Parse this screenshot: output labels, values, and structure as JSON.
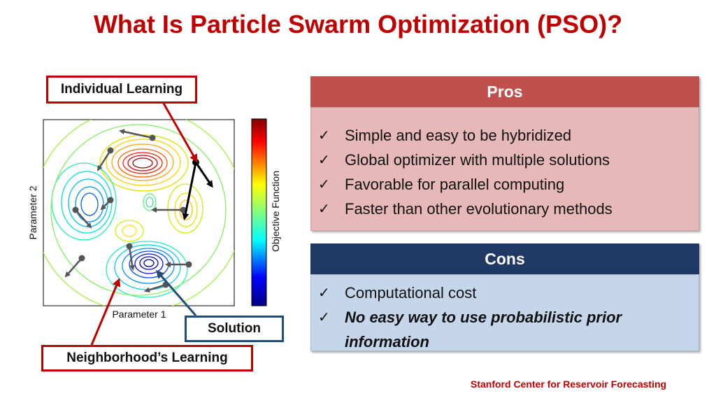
{
  "title": "What Is Particle Swarm Optimization (PSO)?",
  "callouts": {
    "individual": "Individual Learning",
    "solution": "Solution",
    "neighborhood": "Neighborhood’s Learning"
  },
  "plot": {
    "xlabel": "Parameter 1",
    "ylabel": "Parameter 2",
    "colorbar_label": "Objective Function"
  },
  "pros": {
    "header": "Pros",
    "items": [
      "Simple and easy to be hybridized",
      "Global optimizer with multiple solutions",
      "Favorable for parallel computing",
      "Faster than other evolutionary methods"
    ]
  },
  "cons": {
    "header": "Cons",
    "items": [
      "Computational cost",
      "No easy way to use probabilistic prior information"
    ]
  },
  "footer": "Stanford Center for Reservoir Forecasting",
  "colors": {
    "title": "#c00000",
    "pros_header": "#c0504d",
    "pros_body": "#e6b8b7",
    "cons_header": "#1f3864",
    "cons_body": "#c5d5ea"
  }
}
